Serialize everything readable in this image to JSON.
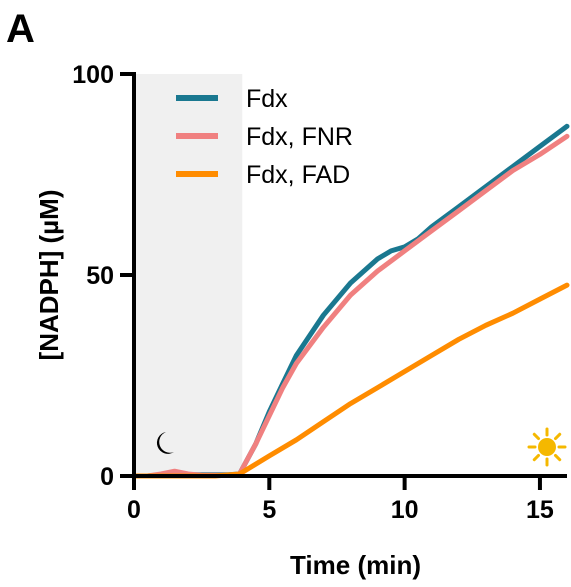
{
  "panel_label": "A",
  "icons": {
    "dark_phase": "moon-icon",
    "light_phase": "sun-icon"
  },
  "chart_data": {
    "type": "line",
    "xlabel": "Time (min)",
    "ylabel": "[NADPH] (µM)",
    "xlim": [
      0,
      16
    ],
    "ylim": [
      0,
      100
    ],
    "xticks": [
      0,
      5,
      10,
      15
    ],
    "yticks": [
      0,
      50,
      100
    ],
    "grid": false,
    "legend_position": "top-left",
    "shaded_region": {
      "x": [
        0,
        4
      ],
      "label": "dark",
      "color": "#f0f0f0"
    },
    "series": [
      {
        "name": "Fdx",
        "color": "#1a7890",
        "x": [
          0,
          0.5,
          1,
          1.5,
          2,
          2.5,
          3,
          3.5,
          3.9,
          4.5,
          5,
          5.5,
          6,
          7,
          8,
          9,
          9.5,
          10,
          10.5,
          11,
          12,
          13,
          14,
          15,
          16
        ],
        "y": [
          0,
          0,
          0.3,
          0.6,
          0.3,
          0.3,
          0.3,
          0.3,
          0.5,
          8,
          16,
          23,
          30,
          40,
          48,
          54,
          56,
          57,
          59,
          62,
          67,
          72,
          77,
          82,
          87
        ]
      },
      {
        "name": "Fdx, FNR",
        "color": "#f08080",
        "x": [
          0,
          0.5,
          1,
          1.5,
          2,
          2.5,
          3,
          3.5,
          3.9,
          4.5,
          5,
          5.5,
          6,
          7,
          8,
          9,
          10,
          11,
          12,
          13,
          14,
          15,
          16
        ],
        "y": [
          0,
          0,
          0.5,
          1.2,
          0.5,
          0.2,
          0.2,
          0.2,
          0.5,
          8,
          15,
          22,
          28,
          37,
          45,
          51,
          56,
          61,
          66,
          71,
          76,
          80,
          84.5
        ]
      },
      {
        "name": "Fdx, FAD",
        "color": "#ff8c00",
        "x": [
          0,
          1,
          2,
          3,
          3.9,
          5,
          6,
          7,
          8,
          9,
          10,
          11,
          12,
          13,
          14,
          15,
          16
        ],
        "y": [
          0,
          0,
          0,
          0,
          0.5,
          5,
          9,
          13.5,
          18,
          22,
          26,
          30,
          34,
          37.5,
          40.5,
          44,
          47.5
        ]
      }
    ]
  }
}
